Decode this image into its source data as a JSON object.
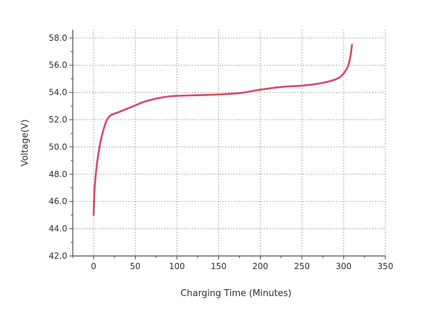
{
  "chart_data": {
    "type": "line",
    "xlabel": "Charging Time (Minutes)",
    "ylabel": "Voltage(V)",
    "xlim": [
      -25,
      350
    ],
    "ylim": [
      42,
      58.6
    ],
    "xticks": [
      0,
      50,
      100,
      150,
      200,
      250,
      300,
      350
    ],
    "xtick_labels": [
      "0",
      "50",
      "100",
      "150",
      "200",
      "250",
      "300",
      "350"
    ],
    "yticks": [
      42,
      44,
      46,
      48,
      50,
      52,
      54,
      56,
      58
    ],
    "ytick_labels": [
      "42.0",
      "44.0",
      "46.0",
      "48.0",
      "50.0",
      "52.0",
      "54.0",
      "56.0",
      "58.0"
    ],
    "grid": true,
    "grid_style": "dotted",
    "series": [
      {
        "color": "#d84060",
        "x": [
          0,
          1,
          3,
          5,
          8,
          12,
          16,
          20,
          25,
          30,
          40,
          50,
          60,
          75,
          90,
          100,
          125,
          150,
          175,
          190,
          200,
          225,
          250,
          270,
          285,
          295,
          300,
          305,
          308,
          310
        ],
        "y": [
          45.0,
          46.8,
          48.2,
          49.2,
          50.3,
          51.3,
          52.0,
          52.3,
          52.45,
          52.55,
          52.8,
          53.05,
          53.3,
          53.55,
          53.7,
          53.75,
          53.8,
          53.85,
          53.95,
          54.1,
          54.2,
          54.4,
          54.5,
          54.65,
          54.85,
          55.1,
          55.4,
          55.9,
          56.6,
          57.5
        ]
      }
    ]
  },
  "colors": {
    "line": "#d84060",
    "grid": "#8a8a8a",
    "axis": "#404040",
    "text": "#2a2a2a"
  }
}
